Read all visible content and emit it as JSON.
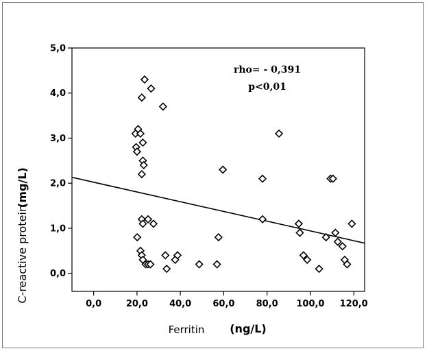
{
  "chart_data": {
    "type": "scatter",
    "title": "",
    "xlabel": "Ferritin",
    "xlabel_unit": "(ng/L)",
    "ylabel": "C-reactive protein",
    "ylabel_unit": "(mg/L)",
    "xlim": [
      -10,
      125
    ],
    "ylim": [
      -0.4,
      5.0
    ],
    "x_ticks": [
      {
        "value": 0,
        "label": "0,0"
      },
      {
        "value": 20,
        "label": "20,0"
      },
      {
        "value": 40,
        "label": "40,0"
      },
      {
        "value": 60,
        "label": "60,0"
      },
      {
        "value": 80,
        "label": "80,0"
      },
      {
        "value": 100,
        "label": "100,0"
      },
      {
        "value": 120,
        "label": "120,0"
      }
    ],
    "y_ticks": [
      {
        "value": 0,
        "label": "0,0"
      },
      {
        "value": 1,
        "label": "1,0"
      },
      {
        "value": 2,
        "label": "2,0"
      },
      {
        "value": 3,
        "label": "3,0"
      },
      {
        "value": 4,
        "label": "4,0"
      },
      {
        "value": 5,
        "label": "5,0"
      }
    ],
    "grid": false,
    "marker": "diamond-open",
    "points": [
      {
        "x": 19.3,
        "y": 3.1
      },
      {
        "x": 20.5,
        "y": 3.2
      },
      {
        "x": 21.6,
        "y": 3.1
      },
      {
        "x": 19.6,
        "y": 2.8
      },
      {
        "x": 20.0,
        "y": 2.7
      },
      {
        "x": 22.7,
        "y": 2.9
      },
      {
        "x": 22.2,
        "y": 2.2
      },
      {
        "x": 22.7,
        "y": 2.5
      },
      {
        "x": 23.1,
        "y": 2.4
      },
      {
        "x": 23.5,
        "y": 4.3
      },
      {
        "x": 22.2,
        "y": 3.9
      },
      {
        "x": 26.5,
        "y": 4.1
      },
      {
        "x": 32.0,
        "y": 3.7
      },
      {
        "x": 20.1,
        "y": 0.8
      },
      {
        "x": 22.2,
        "y": 1.2
      },
      {
        "x": 22.7,
        "y": 1.1
      },
      {
        "x": 25.1,
        "y": 1.2
      },
      {
        "x": 27.6,
        "y": 1.1
      },
      {
        "x": 21.6,
        "y": 0.5
      },
      {
        "x": 22.2,
        "y": 0.4
      },
      {
        "x": 22.7,
        "y": 0.3
      },
      {
        "x": 24.0,
        "y": 0.2
      },
      {
        "x": 25.1,
        "y": 0.2
      },
      {
        "x": 26.2,
        "y": 0.2
      },
      {
        "x": 33.1,
        "y": 0.4
      },
      {
        "x": 33.7,
        "y": 0.1
      },
      {
        "x": 37.6,
        "y": 0.3
      },
      {
        "x": 38.7,
        "y": 0.4
      },
      {
        "x": 48.7,
        "y": 0.2
      },
      {
        "x": 56.9,
        "y": 0.2
      },
      {
        "x": 57.6,
        "y": 0.8
      },
      {
        "x": 59.6,
        "y": 2.3
      },
      {
        "x": 77.9,
        "y": 2.1
      },
      {
        "x": 77.9,
        "y": 1.2
      },
      {
        "x": 85.5,
        "y": 3.1
      },
      {
        "x": 94.6,
        "y": 1.1
      },
      {
        "x": 95.1,
        "y": 0.9
      },
      {
        "x": 96.8,
        "y": 0.4
      },
      {
        "x": 98.5,
        "y": 0.3
      },
      {
        "x": 104.0,
        "y": 0.1
      },
      {
        "x": 107.2,
        "y": 0.8
      },
      {
        "x": 109.3,
        "y": 2.1
      },
      {
        "x": 110.4,
        "y": 2.1
      },
      {
        "x": 111.5,
        "y": 0.9
      },
      {
        "x": 112.6,
        "y": 0.7
      },
      {
        "x": 114.8,
        "y": 0.6
      },
      {
        "x": 115.8,
        "y": 0.3
      },
      {
        "x": 116.9,
        "y": 0.2
      },
      {
        "x": 119.1,
        "y": 1.1
      }
    ],
    "trend_line": {
      "x": [
        -10,
        125
      ],
      "y": [
        2.13,
        0.67
      ]
    },
    "annotations": {
      "line1": "rho= - 0,391",
      "line2": "p<0,01"
    }
  }
}
